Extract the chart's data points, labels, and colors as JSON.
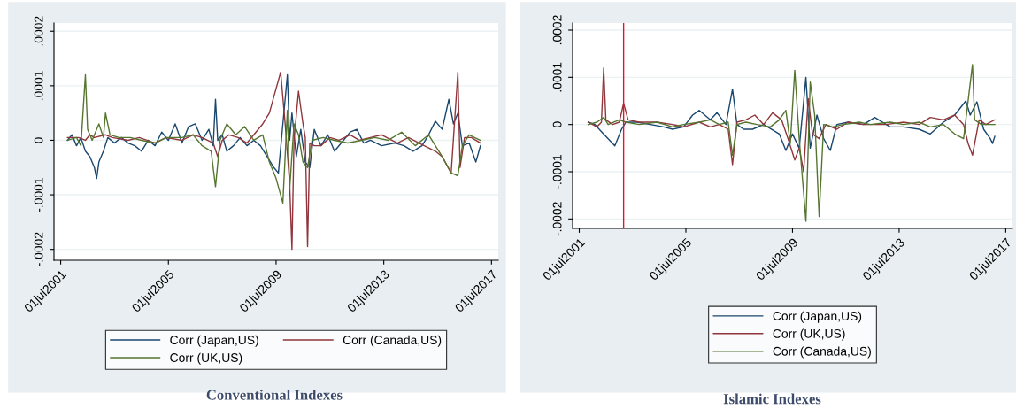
{
  "chart_data": [
    {
      "type": "line",
      "title": "Conventional Indexes",
      "xlim": [
        "2001-04",
        "2017-10"
      ],
      "ylim": [
        -0.00022,
        0.000215
      ],
      "xticks": [
        {
          "value": "2001-07-01",
          "label": "01jul2001"
        },
        {
          "value": "2005-07-01",
          "label": "01jul2005"
        },
        {
          "value": "2009-07-01",
          "label": "01jul2009"
        },
        {
          "value": "2013-07-01",
          "label": "01jul2013"
        },
        {
          "value": "2017-07-01",
          "label": "01jul2017"
        }
      ],
      "yticks": [
        {
          "value": -0.0002,
          "label": "-.0002"
        },
        {
          "value": -0.0001,
          "label": "-.0001"
        },
        0,
        {
          "value": 0.0001,
          "label": ".0001"
        },
        {
          "value": 0.0002,
          "label": ".0002"
        }
      ],
      "grid": "y",
      "legend": "bottom",
      "line_style": "solid",
      "marker": "none",
      "series": [
        {
          "name": "Corr (Japan,US)",
          "color": "#1a476f",
          "x": [
            "2001-10",
            "2001-12",
            "2002-02",
            "2002-04",
            "2002-06",
            "2002-08",
            "2002-10",
            "2002-11",
            "2002-12",
            "2003-02",
            "2003-04",
            "2003-07",
            "2003-10",
            "2004-01",
            "2004-04",
            "2004-07",
            "2004-10",
            "2005-01",
            "2005-04",
            "2005-07",
            "2005-10",
            "2006-01",
            "2006-04",
            "2006-07",
            "2006-10",
            "2007-01",
            "2007-03",
            "2007-04",
            "2007-05",
            "2007-07",
            "2007-09",
            "2007-12",
            "2008-03",
            "2008-06",
            "2008-09",
            "2008-12",
            "2009-03",
            "2009-06",
            "2009-08",
            "2009-10",
            "2009-12",
            "2010-01",
            "2010-02",
            "2010-04",
            "2010-06",
            "2010-08",
            "2010-10",
            "2010-12",
            "2011-03",
            "2011-06",
            "2011-09",
            "2012-01",
            "2012-04",
            "2012-07",
            "2012-10",
            "2013-01",
            "2013-06",
            "2013-12",
            "2014-04",
            "2014-08",
            "2014-12",
            "2015-03",
            "2015-06",
            "2015-09",
            "2015-12",
            "2016-02",
            "2016-04",
            "2016-06",
            "2016-09",
            "2016-12",
            "2017-02"
          ],
          "values": [
            0,
            1e-05,
            -1e-05,
            5e-06,
            -2e-05,
            -3e-05,
            -5e-05,
            -7e-05,
            -4e-05,
            -2e-05,
            5e-06,
            -5e-06,
            5e-06,
            -5e-06,
            -1e-05,
            -2e-05,
            0,
            -1e-05,
            1.5e-05,
            0,
            3e-05,
            -5e-06,
            2.5e-05,
            3e-05,
            0,
            2e-05,
            -1e-05,
            7.5e-05,
            0,
            1e-05,
            -2e-05,
            -1e-05,
            5e-06,
            -1e-05,
            0,
            -1e-05,
            -3e-05,
            -5e-05,
            -6e-05,
            3e-05,
            0.00012,
            0,
            5e-05,
            -3e-05,
            2e-05,
            -4e-05,
            -5e-05,
            2e-05,
            -1e-05,
            1e-05,
            -2e-05,
            0,
            1.5e-05,
            2e-05,
            -5e-06,
            0,
            -1e-05,
            -5e-06,
            -1e-05,
            -2e-05,
            -1e-05,
            1e-05,
            3.5e-05,
            2e-05,
            7.5e-05,
            3e-05,
            5e-05,
            -1e-05,
            -5e-06,
            -4e-05,
            -1e-05
          ]
        },
        {
          "name": "Corr (Canada,US)",
          "color": "#90353b",
          "x": [
            "2001-10",
            "2002-03",
            "2002-06",
            "2002-08",
            "2002-10",
            "2003-03",
            "2003-06",
            "2004-01",
            "2004-06",
            "2005-01",
            "2005-06",
            "2006-01",
            "2006-06",
            "2006-10",
            "2007-03",
            "2007-05",
            "2007-07",
            "2007-10",
            "2008-02",
            "2008-06",
            "2008-10",
            "2009-01",
            "2009-04",
            "2009-06",
            "2009-09",
            "2009-11",
            "2010-01",
            "2010-02",
            "2010-03",
            "2010-05",
            "2010-07",
            "2010-08",
            "2010-09",
            "2010-10",
            "2010-12",
            "2011-03",
            "2011-07",
            "2011-11",
            "2012-04",
            "2012-08",
            "2013-01",
            "2013-06",
            "2014-01",
            "2014-06",
            "2015-01",
            "2015-06",
            "2015-09",
            "2016-01",
            "2016-04",
            "2016-05",
            "2016-07",
            "2016-10",
            "2017-02"
          ],
          "values": [
            5e-06,
            5e-06,
            0,
            1e-05,
            5e-06,
            1e-05,
            5e-06,
            0,
            5e-06,
            -5e-06,
            5e-06,
            0,
            1e-05,
            5e-06,
            -5e-06,
            -3e-05,
            0,
            1e-05,
            5e-06,
            -5e-06,
            1.5e-05,
            3e-05,
            5e-05,
            8e-05,
            0.000125,
            3e-05,
            -8e-05,
            -0.0002,
            0,
            9e-05,
            3e-05,
            5e-06,
            -0.000195,
            -5e-06,
            -1e-05,
            -1e-05,
            5e-06,
            0,
            1e-05,
            0,
            5e-06,
            1e-05,
            -5e-06,
            5e-06,
            -1e-05,
            -2e-05,
            -3e-05,
            -6e-05,
            0.000125,
            -5e-05,
            5e-06,
            5e-06,
            -5e-06
          ]
        },
        {
          "name": "Corr (UK,US)",
          "color": "#55752f",
          "x": [
            "2001-10",
            "2002-02",
            "2002-04",
            "2002-06",
            "2002-07",
            "2002-09",
            "2002-12",
            "2003-02",
            "2003-03",
            "2003-05",
            "2003-09",
            "2004-02",
            "2004-07",
            "2005-01",
            "2005-06",
            "2006-01",
            "2006-06",
            "2006-10",
            "2007-02",
            "2007-04",
            "2007-06",
            "2007-09",
            "2008-01",
            "2008-05",
            "2008-09",
            "2009-01",
            "2009-04",
            "2009-07",
            "2009-10",
            "2009-12",
            "2010-01",
            "2010-03",
            "2010-05",
            "2010-07",
            "2010-09",
            "2010-11",
            "2011-04",
            "2011-09",
            "2012-03",
            "2012-09",
            "2013-03",
            "2013-09",
            "2014-03",
            "2014-09",
            "2015-03",
            "2015-09",
            "2016-01",
            "2016-04",
            "2016-06",
            "2016-09",
            "2017-02"
          ],
          "values": [
            0,
            5e-06,
            -1e-05,
            0.00012,
            2e-05,
            0,
            3e-05,
            5e-06,
            5e-05,
            1e-05,
            5e-06,
            5e-06,
            0,
            -5e-06,
            5e-06,
            5e-06,
            1e-05,
            -1e-05,
            -2e-05,
            -8.5e-05,
            0,
            3e-05,
            1e-05,
            2.5e-05,
            0,
            1e-05,
            -4e-05,
            -7e-05,
            -0.000115,
            5.5e-05,
            -9e-05,
            3e-05,
            1e-05,
            -4e-05,
            -5e-05,
            0,
            5e-06,
            0,
            -5e-06,
            0,
            5e-06,
            0,
            1.5e-05,
            -1e-05,
            1e-05,
            -3e-05,
            -6e-05,
            -6.5e-05,
            -1e-05,
            1e-05,
            0
          ]
        }
      ]
    },
    {
      "type": "line",
      "title": "Islamic Indexes",
      "xlim": [
        "2001-04",
        "2017-10"
      ],
      "ylim": [
        -0.00022,
        0.000215
      ],
      "xticks": [
        {
          "value": "2001-07-01",
          "label": "01jul2001"
        },
        {
          "value": "2005-07-01",
          "label": "01jul2005"
        },
        {
          "value": "2009-07-01",
          "label": "01jul2009"
        },
        {
          "value": "2013-07-01",
          "label": "01jul2013"
        },
        {
          "value": "2017-07-01",
          "label": "01jul2017"
        }
      ],
      "yticks": [
        {
          "value": -0.0002,
          "label": "-.0002"
        },
        {
          "value": -0.0001,
          "label": "-.0001"
        },
        0,
        {
          "value": 0.0001,
          "label": ".0001"
        },
        {
          "value": 0.0002,
          "label": ".0002"
        }
      ],
      "grid": "y",
      "legend": "bottom",
      "line_style": "solid",
      "marker": "none",
      "ref_lines": [
        {
          "axis": "x",
          "value": "2003-03",
          "color": "#e8132b"
        }
      ],
      "series": [
        {
          "name": "Corr (Japan,US)",
          "color": "#1a476f",
          "x": [
            "2001-11",
            "2002-02",
            "2002-05",
            "2002-08",
            "2002-11",
            "2003-02",
            "2003-04",
            "2003-09",
            "2004-03",
            "2004-09",
            "2005-01",
            "2005-06",
            "2005-10",
            "2006-01",
            "2006-06",
            "2006-09",
            "2007-01",
            "2007-04",
            "2007-06",
            "2007-09",
            "2008-01",
            "2008-06",
            "2009-01",
            "2009-04",
            "2009-07",
            "2009-10",
            "2010-01",
            "2010-03",
            "2010-06",
            "2010-09",
            "2010-12",
            "2011-03",
            "2011-08",
            "2012-03",
            "2012-08",
            "2013-03",
            "2013-09",
            "2014-04",
            "2014-09",
            "2015-03",
            "2015-08",
            "2016-01",
            "2016-03",
            "2016-06",
            "2016-09",
            "2016-12",
            "2017-01",
            "2017-02"
          ],
          "values": [
            5e-06,
            0,
            -1.5e-05,
            -3e-05,
            -4.5e-05,
            -1e-05,
            5e-06,
            5e-06,
            0,
            -5e-06,
            -1e-05,
            -5e-06,
            2e-05,
            3e-05,
            1e-05,
            2.5e-05,
            0,
            7.5e-05,
            0,
            -1e-05,
            -1e-05,
            0,
            -2e-05,
            -5.5e-05,
            -2e-05,
            -5e-05,
            0.0001,
            -5e-05,
            2e-05,
            -3e-05,
            -5.5e-05,
            0,
            5e-06,
            0,
            1.5e-05,
            -5e-06,
            -5e-06,
            -1e-05,
            -2e-05,
            5e-06,
            2e-05,
            5e-05,
            2e-05,
            4.8e-05,
            -1e-05,
            -3e-05,
            -4e-05,
            -2.5e-05
          ]
        },
        {
          "name": "Corr (UK,US)",
          "color": "#90353b",
          "x": [
            "2001-11",
            "2002-03",
            "2002-05",
            "2002-06",
            "2002-07",
            "2002-10",
            "2003-01",
            "2003-03",
            "2003-05",
            "2003-10",
            "2004-06",
            "2005-01",
            "2005-06",
            "2006-01",
            "2006-06",
            "2006-10",
            "2007-02",
            "2007-04",
            "2007-06",
            "2007-10",
            "2008-02",
            "2008-06",
            "2008-10",
            "2009-02",
            "2009-05",
            "2009-08",
            "2009-10",
            "2009-12",
            "2010-02",
            "2010-04",
            "2010-07",
            "2010-10",
            "2011-03",
            "2011-08",
            "2012-03",
            "2013-01",
            "2013-09",
            "2014-04",
            "2014-09",
            "2015-03",
            "2015-08",
            "2015-12",
            "2016-02",
            "2016-04",
            "2016-07",
            "2016-10",
            "2017-02"
          ],
          "values": [
            5e-06,
            -5e-06,
            5e-06,
            0.00012,
            1e-05,
            0,
            5e-06,
            4.5e-05,
            1e-05,
            5e-06,
            5e-06,
            0,
            -5e-06,
            5e-06,
            -5e-06,
            0,
            -1e-05,
            -8.5e-05,
            5e-06,
            1e-05,
            2e-05,
            0,
            2.5e-05,
            1e-05,
            -3e-05,
            -7.5e-05,
            -5e-05,
            -0.0001,
            5.5e-05,
            -2e-05,
            -3e-05,
            0,
            -1e-05,
            5e-06,
            0,
            0,
            5e-06,
            0,
            1.5e-05,
            1e-05,
            2e-05,
            0,
            -4e-05,
            -6.5e-05,
            1e-05,
            0,
            1e-05
          ]
        },
        {
          "name": "Corr (Canada,US)",
          "color": "#55752f",
          "x": [
            "2001-11",
            "2002-03",
            "2002-06",
            "2002-08",
            "2003-01",
            "2003-04",
            "2003-10",
            "2004-06",
            "2005-01",
            "2005-06",
            "2006-01",
            "2006-06",
            "2006-10",
            "2007-02",
            "2007-04",
            "2007-06",
            "2007-10",
            "2008-03",
            "2008-09",
            "2009-01",
            "2009-04",
            "2009-06",
            "2009-08",
            "2009-10",
            "2010-01",
            "2010-03",
            "2010-05",
            "2010-07",
            "2010-09",
            "2011-01",
            "2011-06",
            "2012-01",
            "2012-06",
            "2013-03",
            "2013-09",
            "2014-04",
            "2014-09",
            "2015-03",
            "2015-08",
            "2015-12",
            "2016-04",
            "2016-05",
            "2016-08",
            "2017-02"
          ],
          "values": [
            0,
            5e-06,
            1.5e-05,
            0,
            1e-05,
            5e-06,
            0,
            5e-06,
            -5e-06,
            0,
            5e-06,
            1e-05,
            0,
            5e-06,
            -6.5e-05,
            0,
            5e-06,
            0,
            -5e-06,
            1e-05,
            3e-05,
            -4e-05,
            0.000115,
            -3e-05,
            -0.000205,
            9e-05,
            2e-05,
            -0.000195,
            0,
            -5e-06,
            0,
            5e-06,
            0,
            5e-06,
            0,
            5e-06,
            -5e-06,
            0,
            -2e-05,
            -3e-05,
            0.000127,
            1e-05,
            0,
            0
          ]
        }
      ]
    }
  ]
}
